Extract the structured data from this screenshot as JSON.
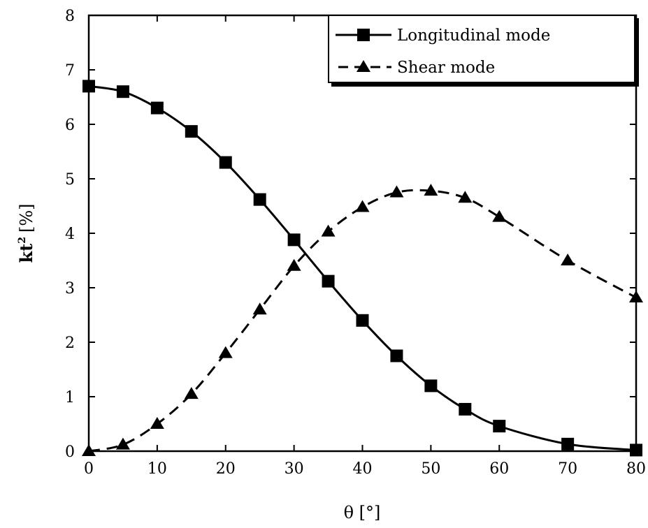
{
  "chart_data": {
    "type": "line",
    "title": "",
    "xlabel": "θ [°]",
    "ylabel_main": "kt",
    "ylabel_sup": "2",
    "ylabel_unit": "[%]",
    "xlim": [
      0,
      80
    ],
    "ylim": [
      0,
      8
    ],
    "xticks": [
      0,
      10,
      20,
      30,
      40,
      50,
      60,
      70,
      80
    ],
    "yticks": [
      0,
      1,
      2,
      3,
      4,
      5,
      6,
      7,
      8
    ],
    "grid": false,
    "legend_position": "top-right",
    "series": [
      {
        "name": "Longitudinal mode",
        "line_style": "solid",
        "marker": "square",
        "color": "#000000",
        "x": [
          0,
          5,
          10,
          15,
          20,
          25,
          30,
          35,
          40,
          45,
          50,
          55,
          60,
          70,
          80
        ],
        "y": [
          6.7,
          6.6,
          6.3,
          5.87,
          5.3,
          4.62,
          3.88,
          3.12,
          2.4,
          1.75,
          1.2,
          0.77,
          0.46,
          0.13,
          0.02
        ]
      },
      {
        "name": "Shear mode",
        "line_style": "dashed",
        "marker": "triangle",
        "color": "#000000",
        "x": [
          0,
          5,
          10,
          15,
          20,
          25,
          30,
          35,
          40,
          45,
          50,
          55,
          60,
          70,
          80
        ],
        "y": [
          0,
          0.12,
          0.5,
          1.05,
          1.8,
          2.6,
          3.4,
          4.03,
          4.48,
          4.75,
          4.78,
          4.65,
          4.3,
          3.5,
          2.82
        ]
      }
    ]
  }
}
